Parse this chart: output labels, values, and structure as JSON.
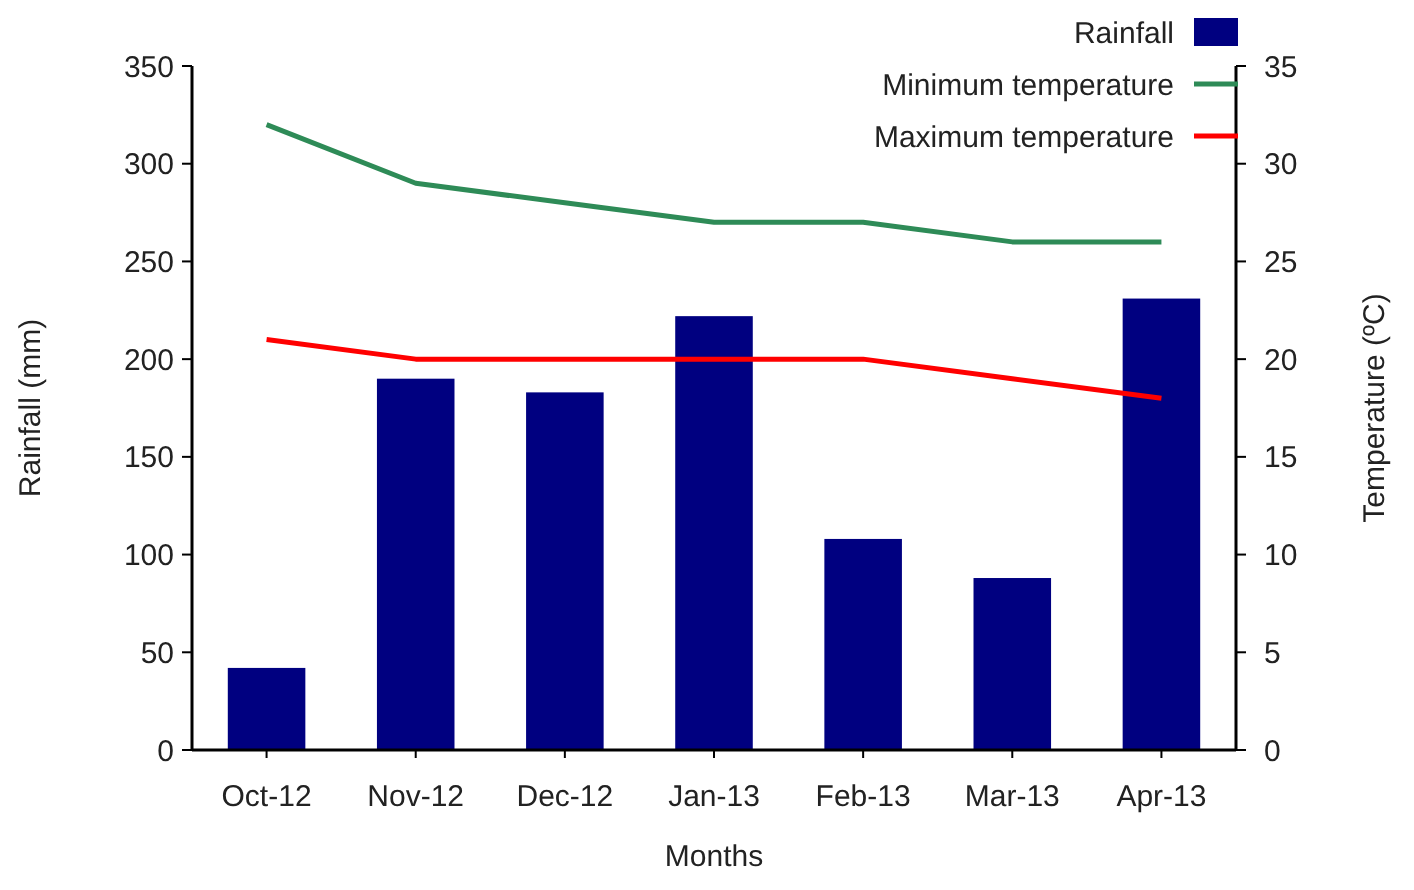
{
  "chart_data": {
    "type": "bar",
    "xlabel": "Months",
    "ylabel": "Rainfall (mm)",
    "y2label": "Temperature (ºC)",
    "categories": [
      "Oct-12",
      "Nov-12",
      "Dec-12",
      "Jan-13",
      "Feb-13",
      "Mar-13",
      "Apr-13"
    ],
    "series": [
      {
        "name": "Rainfall",
        "color": "#000080",
        "values": [
          42,
          190,
          183,
          222,
          108,
          88,
          231
        ]
      },
      {
        "name": "Minimum temperature",
        "type": "line",
        "axis": "y2",
        "color": "#2e8b57",
        "values": [
          32,
          29,
          28,
          27,
          27,
          26,
          26
        ]
      },
      {
        "name": "Maximum temperature",
        "type": "line",
        "axis": "y2",
        "color": "#ff0000",
        "values": [
          21,
          20,
          20,
          20,
          20,
          19,
          18
        ]
      }
    ],
    "ylim": [
      0,
      350
    ],
    "yticks": [
      0,
      50,
      100,
      150,
      200,
      250,
      300,
      350
    ],
    "y2lim": [
      0,
      35
    ],
    "y2ticks": [
      0,
      5,
      10,
      15,
      20,
      25,
      30,
      35
    ],
    "legend": "top right",
    "grid": false,
    "marker": "none",
    "line_style": "solid"
  }
}
